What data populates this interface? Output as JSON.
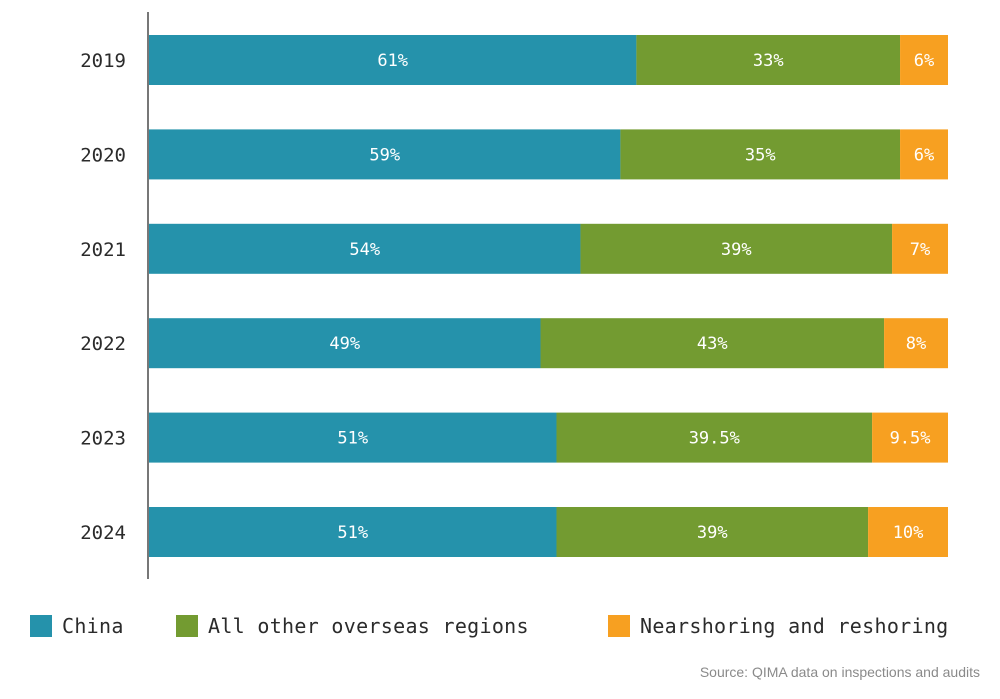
{
  "chart_data": {
    "type": "bar",
    "orientation": "horizontal",
    "stacked": true,
    "categories": [
      "2019",
      "2020",
      "2021",
      "2022",
      "2023",
      "2024"
    ],
    "series": [
      {
        "name": "China",
        "color": "#2592AB",
        "values": [
          61,
          59,
          54,
          49,
          51,
          51
        ],
        "labels": [
          "61%",
          "59%",
          "54%",
          "49%",
          "51%",
          "51%"
        ]
      },
      {
        "name": "All other overseas regions",
        "color": "#739B31",
        "values": [
          33,
          35,
          39,
          43,
          39.5,
          39
        ],
        "labels": [
          "33%",
          "35%",
          "39%",
          "43%",
          "39.5%",
          "39%"
        ]
      },
      {
        "name": "Nearshoring and reshoring",
        "color": "#F7A021",
        "values": [
          6,
          6,
          7,
          8,
          9.5,
          10
        ],
        "labels": [
          "6%",
          "6%",
          "7%",
          "8%",
          "9.5%",
          "10%"
        ]
      }
    ],
    "xlim": [
      0,
      100
    ],
    "grid": false,
    "legend_position": "bottom"
  },
  "legend": {
    "china": "China",
    "other": "All other overseas regions",
    "near": "Nearshoring and reshoring"
  },
  "source": "Source: QIMA data on inspections and audits"
}
